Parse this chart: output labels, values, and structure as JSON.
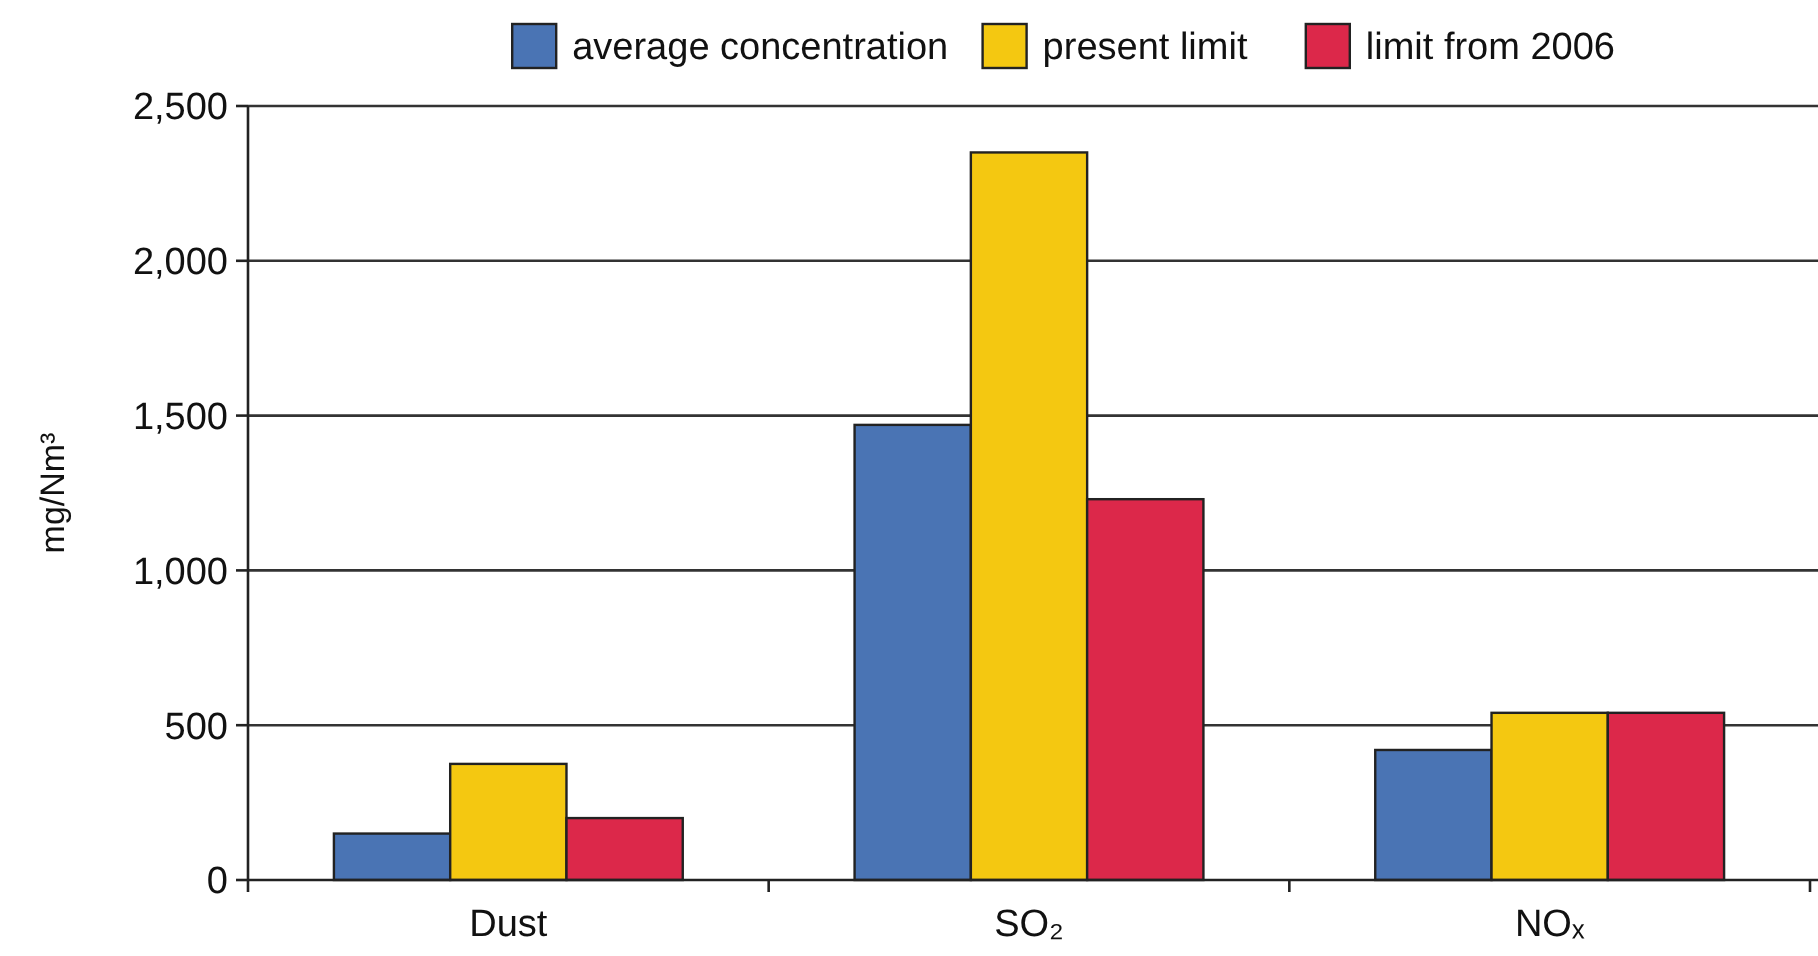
{
  "chart_data": {
    "type": "bar",
    "ylabel": "mg/Nm³",
    "categories": [
      "Dust",
      "SO₂",
      "NOₓ"
    ],
    "series": [
      {
        "name": "average concentration",
        "color": "#4a74b4",
        "values": [
          150,
          1470,
          420
        ]
      },
      {
        "name": "present limit",
        "color": "#f4c811",
        "values": [
          375,
          2350,
          540
        ]
      },
      {
        "name": "limit from 2006",
        "color": "#dc284a",
        "values": [
          200,
          1230,
          540
        ]
      }
    ],
    "ylim": [
      0,
      2500
    ],
    "yticks": [
      {
        "value": 0,
        "label": "0"
      },
      {
        "value": 500,
        "label": "500"
      },
      {
        "value": 1000,
        "label": "1,000"
      },
      {
        "value": 1500,
        "label": "1,500"
      },
      {
        "value": 2000,
        "label": "2,000"
      },
      {
        "value": 2500,
        "label": "2,500"
      }
    ],
    "grid": "y",
    "legend": "top"
  }
}
